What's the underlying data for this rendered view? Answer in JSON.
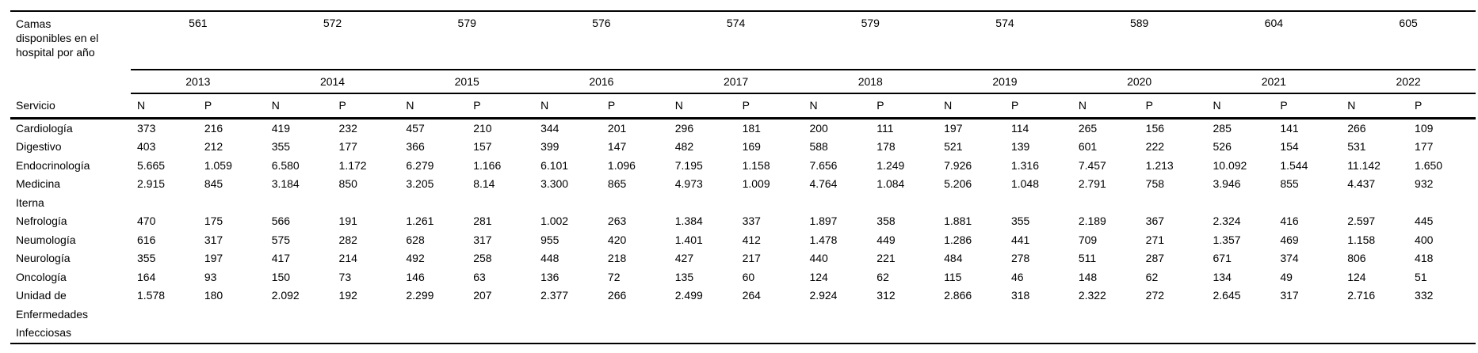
{
  "page": {
    "background": "#ffffff",
    "text_color": "#000000",
    "rule_color": "#000000"
  },
  "table": {
    "beds_header": "Camas\ndisponibles en el\nhospital por año",
    "service_header": "Servicio",
    "sub_headers": [
      "N",
      "P"
    ],
    "years": [
      "2013",
      "2014",
      "2015",
      "2016",
      "2017",
      "2018",
      "2019",
      "2020",
      "2021",
      "2022"
    ],
    "beds_per_year": [
      "561",
      "572",
      "579",
      "576",
      "574",
      "579",
      "574",
      "589",
      "604",
      "605"
    ],
    "rows": [
      {
        "service": "Cardiología",
        "values": [
          "373",
          "216",
          "419",
          "232",
          "457",
          "210",
          "344",
          "201",
          "296",
          "181",
          "200",
          "111",
          "197",
          "114",
          "265",
          "156",
          "285",
          "141",
          "266",
          "109"
        ]
      },
      {
        "service": "Digestivo",
        "values": [
          "403",
          "212",
          "355",
          "177",
          "366",
          "157",
          "399",
          "147",
          "482",
          "169",
          "588",
          "178",
          "521",
          "139",
          "601",
          "222",
          "526",
          "154",
          "531",
          "177"
        ]
      },
      {
        "service": "Endocrinología",
        "values": [
          "5.665",
          "1.059",
          "6.580",
          "1.172",
          "6.279",
          "1.166",
          "6.101",
          "1.096",
          "7.195",
          "1.158",
          "7.656",
          "1.249",
          "7.926",
          "1.316",
          "7.457",
          "1.213",
          "10.092",
          "1.544",
          "11.142",
          "1.650"
        ]
      },
      {
        "service": "Medicina\nIterna",
        "values": [
          "2.915",
          "845",
          "3.184",
          "850",
          "3.205",
          "8.14",
          "3.300",
          "865",
          "4.973",
          "1.009",
          "4.764",
          "1.084",
          "5.206",
          "1.048",
          "2.791",
          "758",
          "3.946",
          "855",
          "4.437",
          "932"
        ]
      },
      {
        "service": "Nefrología",
        "values": [
          "470",
          "175",
          "566",
          "191",
          "1.261",
          "281",
          "1.002",
          "263",
          "1.384",
          "337",
          "1.897",
          "358",
          "1.881",
          "355",
          "2.189",
          "367",
          "2.324",
          "416",
          "2.597",
          "445"
        ]
      },
      {
        "service": "Neumología",
        "values": [
          "616",
          "317",
          "575",
          "282",
          "628",
          "317",
          "955",
          "420",
          "1.401",
          "412",
          "1.478",
          "449",
          "1.286",
          "441",
          "709",
          "271",
          "1.357",
          "469",
          "1.158",
          "400"
        ]
      },
      {
        "service": "Neurología",
        "values": [
          "355",
          "197",
          "417",
          "214",
          "492",
          "258",
          "448",
          "218",
          "427",
          "217",
          "440",
          "221",
          "484",
          "278",
          "511",
          "287",
          "671",
          "374",
          "806",
          "418"
        ]
      },
      {
        "service": "Oncología",
        "values": [
          "164",
          "93",
          "150",
          "73",
          "146",
          "63",
          "136",
          "72",
          "135",
          "60",
          "124",
          "62",
          "115",
          "46",
          "148",
          "62",
          "134",
          "49",
          "124",
          "51"
        ]
      },
      {
        "service": "Unidad de\nEnfermedades\nInfecciosas",
        "values": [
          "1.578",
          "180",
          "2.092",
          "192",
          "2.299",
          "207",
          "2.377",
          "266",
          "2.499",
          "264",
          "2.924",
          "312",
          "2.866",
          "318",
          "2.322",
          "272",
          "2.645",
          "317",
          "2.716",
          "332"
        ]
      }
    ]
  }
}
